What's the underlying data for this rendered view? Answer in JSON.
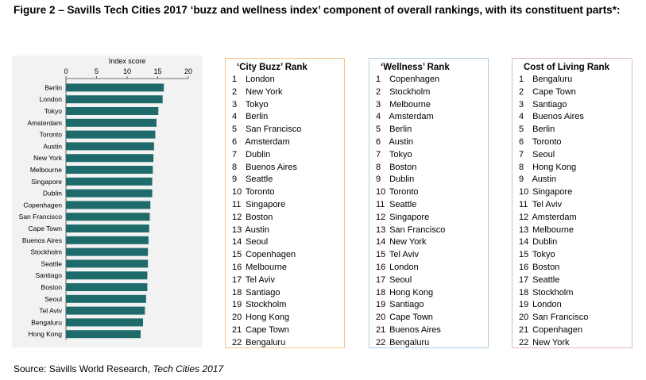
{
  "title": "Figure 2 – Savills Tech Cities 2017 ‘buzz and wellness index’ component of overall rankings, with its constituent parts*:",
  "source": {
    "prefix": "Source: Savills World Research, ",
    "italic": "Tech Cities 2017"
  },
  "chart_data": {
    "type": "bar",
    "orientation": "horizontal",
    "title": "Index score",
    "xlabel": "Index score",
    "ylabel": "",
    "xlim": [
      0,
      20
    ],
    "xticks": [
      0,
      5,
      10,
      15,
      20
    ],
    "grid": false,
    "categories": [
      "Berlin",
      "London",
      "Tokyo",
      "Amsterdam",
      "Toronto",
      "Austin",
      "New York",
      "Melbourne",
      "Singapore",
      "Dublin",
      "Copenhagen",
      "San Francisco",
      "Cape Town",
      "Buenos Aires",
      "Stockholm",
      "Seattle",
      "Santiago",
      "Boston",
      "Seoul",
      "Tel Aviv",
      "Bengaluru",
      "Hong Kong"
    ],
    "values": [
      16.0,
      15.8,
      15.1,
      14.8,
      14.6,
      14.4,
      14.3,
      14.2,
      14.1,
      14.1,
      13.8,
      13.7,
      13.6,
      13.5,
      13.4,
      13.4,
      13.3,
      13.3,
      13.1,
      12.9,
      12.6,
      12.2
    ],
    "color": "#1f6b6b"
  },
  "tables": {
    "buzz": {
      "header": "‘City Buzz’ Rank",
      "cities": [
        "London",
        "New York",
        "Tokyo",
        "Berlin",
        "San Francisco",
        "Amsterdam",
        "Dublin",
        "Buenos Aires",
        "Seattle",
        "Toronto",
        "Singapore",
        "Boston",
        "Austin",
        "Seoul",
        "Copenhagen",
        "Melbourne",
        "Tel Aviv",
        "Santiago",
        "Stockholm",
        "Hong Kong",
        "Cape Town",
        "Bengaluru"
      ]
    },
    "wellness": {
      "header": "‘Wellness’ Rank",
      "cities": [
        "Copenhagen",
        "Stockholm",
        "Melbourne",
        "Amsterdam",
        "Berlin",
        "Austin",
        "Tokyo",
        "Boston",
        "Dublin",
        "Toronto",
        "Seattle",
        "Singapore",
        "San Francisco",
        "New York",
        "Tel Aviv",
        "London",
        "Seoul",
        "Hong Kong",
        "Santiago",
        "Cape Town",
        "Buenos Aires",
        "Bengaluru"
      ]
    },
    "cost": {
      "header": "Cost of Living Rank",
      "cities": [
        "Bengaluru",
        "Cape Town",
        "Santiago",
        "Buenos Aires",
        "Berlin",
        "Toronto",
        "Seoul",
        "Hong Kong",
        "Austin",
        "Singapore",
        "Tel Aviv",
        "Amsterdam",
        "Melbourne",
        "Dublin",
        "Tokyo",
        "Boston",
        "Seattle",
        "Stockholm",
        "London",
        "San Francisco",
        "Copenhagen",
        "New York"
      ]
    }
  }
}
